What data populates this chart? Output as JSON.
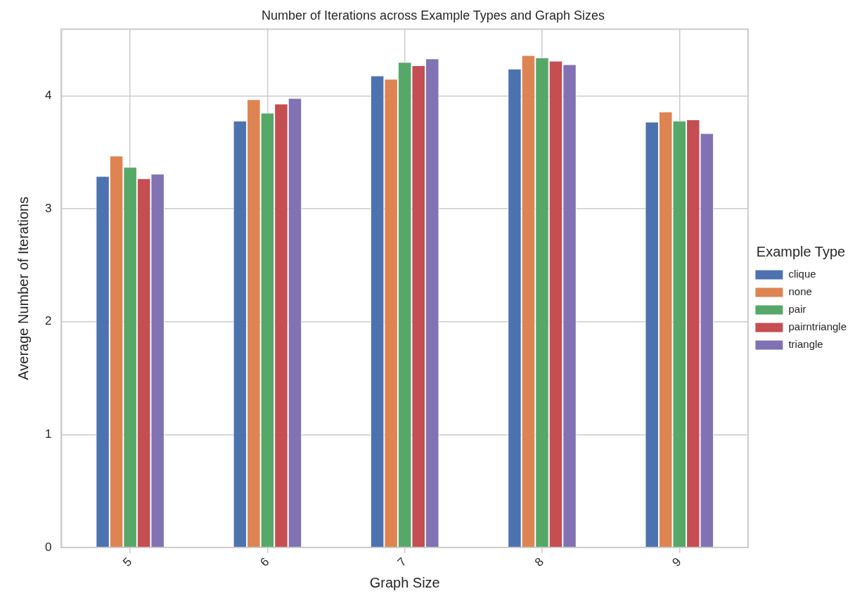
{
  "chart_data": {
    "type": "bar",
    "title": "Number of Iterations across Example Types and Graph Sizes",
    "xlabel": "Graph Size",
    "ylabel": "Average Number of Iterations",
    "legend_title": "Example Type",
    "categories": [
      "5",
      "6",
      "7",
      "8",
      "9"
    ],
    "series": [
      {
        "name": "clique",
        "color": "#4c72b0",
        "values": [
          3.29,
          3.78,
          4.18,
          4.24,
          3.77
        ]
      },
      {
        "name": "none",
        "color": "#dd8452",
        "values": [
          3.47,
          3.97,
          4.15,
          4.36,
          3.86
        ]
      },
      {
        "name": "pair",
        "color": "#55a868",
        "values": [
          3.37,
          3.85,
          4.3,
          4.34,
          3.78
        ]
      },
      {
        "name": "pairntriangle",
        "color": "#c44e52",
        "values": [
          3.27,
          3.93,
          4.27,
          4.31,
          3.79
        ]
      },
      {
        "name": "triangle",
        "color": "#8172b3",
        "values": [
          3.31,
          3.98,
          4.33,
          4.28,
          3.67
        ]
      }
    ],
    "ylim": [
      0,
      4.59
    ],
    "yticks": [
      0,
      1,
      2,
      3,
      4
    ],
    "grid": true,
    "legend": "right"
  }
}
